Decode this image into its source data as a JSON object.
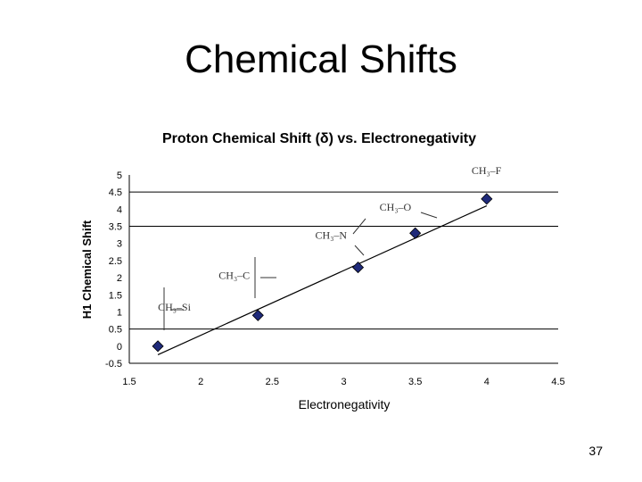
{
  "slide": {
    "title": "Chemical Shifts",
    "page_number": "37"
  },
  "chart_data": {
    "type": "scatter",
    "title": "Proton Chemical Shift (δ) vs. Electronegativity",
    "xlabel": "Electronegativity",
    "ylabel": "H1 Chemical Shift",
    "xlim": [
      1.5,
      4.5
    ],
    "ylim": [
      -0.5,
      5
    ],
    "x_ticks": [
      "1.5",
      "2",
      "2.5",
      "3",
      "3.5",
      "4",
      "4.5"
    ],
    "y_ticks": [
      "5",
      "4.5",
      "4",
      "3.5",
      "3",
      "2.5",
      "2",
      "1.5",
      "1",
      "0.5",
      "0",
      "-0.5"
    ],
    "gridlines_y": [
      4.5,
      3.5,
      0.5
    ],
    "grid": "horizontal major lines",
    "legend": "none",
    "marker_color": "#1f2a7a",
    "series": [
      {
        "x": [
          1.7,
          2.4,
          3.1,
          3.5,
          4.0
        ],
        "y": [
          0.0,
          0.9,
          2.3,
          3.3,
          4.3
        ]
      }
    ],
    "trendline": {
      "x": [
        1.7,
        4.0
      ],
      "y": [
        -0.25,
        4.1
      ]
    },
    "annotations": [
      {
        "text": "CH₃–Si",
        "x": 1.7,
        "y": 0.0
      },
      {
        "text": "CH₃–C",
        "x": 2.4,
        "y": 0.9
      },
      {
        "text": "CH₃–N",
        "x": 3.1,
        "y": 2.3
      },
      {
        "text": "CH₃–O",
        "x": 3.5,
        "y": 3.3
      },
      {
        "text": "CH₃–F",
        "x": 4.0,
        "y": 4.3
      }
    ]
  }
}
